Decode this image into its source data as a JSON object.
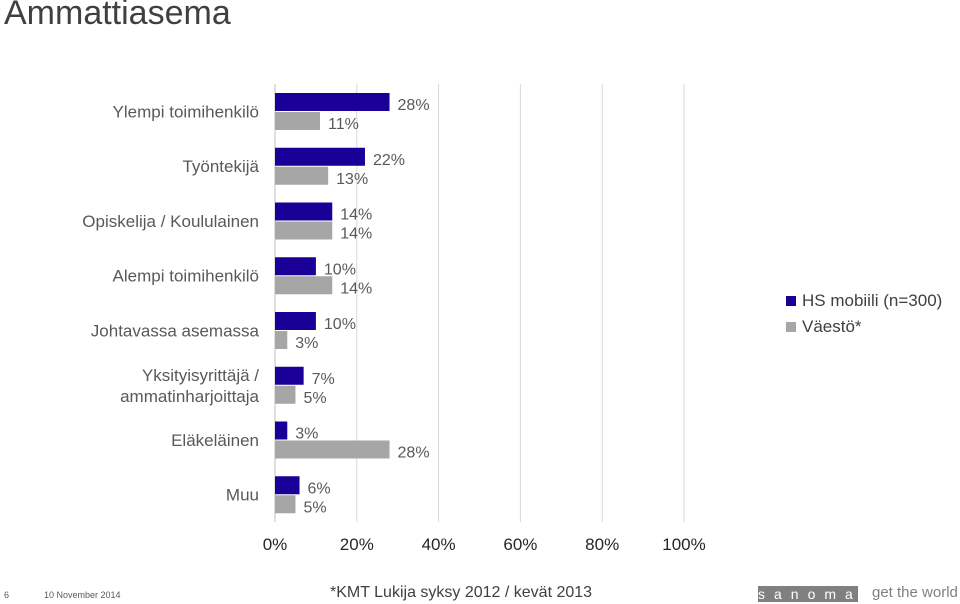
{
  "title": "Ammattiasema",
  "chart_data": {
    "type": "bar",
    "orientation": "horizontal",
    "categories": [
      [
        "Ylempi toimihenkilö"
      ],
      [
        "Työntekijä"
      ],
      [
        "Opiskelija / Koululainen"
      ],
      [
        "Alempi toimihenkilö"
      ],
      [
        "Johtavassa asemassa"
      ],
      [
        "Yksityisyrittäjä /",
        "ammatinharjoittaja"
      ],
      [
        "Eläkeläinen"
      ],
      [
        "Muu"
      ]
    ],
    "series": [
      {
        "name": "HS mobiili (n=300)",
        "color": "#1a0096",
        "values": [
          28,
          22,
          14,
          10,
          10,
          7,
          3,
          6
        ],
        "labels": [
          "28%",
          "22%",
          "14%",
          "10%",
          "10%",
          "7%",
          "3%",
          "6%"
        ]
      },
      {
        "name": "Väestö*",
        "color": "#a6a6a6",
        "values": [
          11,
          13,
          14,
          14,
          3,
          5,
          28,
          5
        ],
        "labels": [
          "11%",
          "13%",
          "14%",
          "14%",
          "3%",
          "5%",
          "28%",
          "5%"
        ]
      }
    ],
    "x_ticks": [
      "0%",
      "20%",
      "40%",
      "60%",
      "80%",
      "100%"
    ],
    "xlim": [
      0,
      100
    ],
    "grid": true,
    "legend_position": "right"
  },
  "footer": {
    "page_number": "6",
    "date": "10 November 2014",
    "note": "*KMT Lukija syksy 2012 / kevät 2013",
    "brand": "sanoma",
    "tagline": "get the world"
  }
}
